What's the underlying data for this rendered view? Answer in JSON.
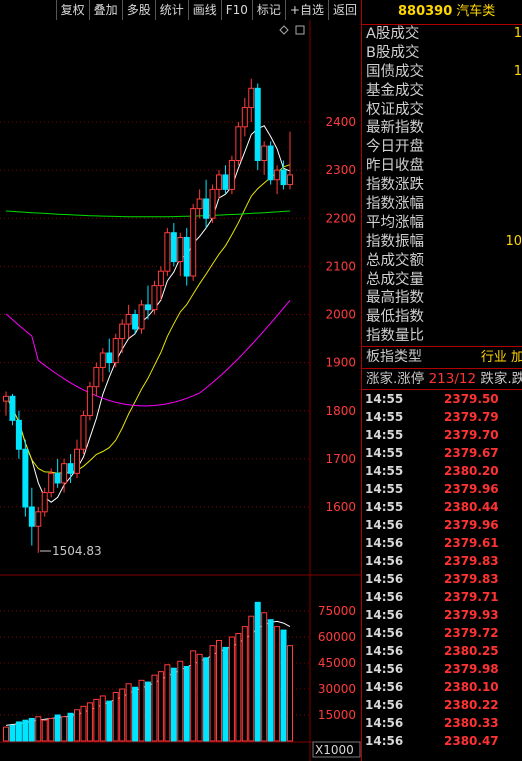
{
  "toolbar": {
    "buttons": [
      "复权",
      "叠加",
      "多股",
      "统计",
      "画线",
      "F10",
      "标记",
      "+自选",
      "返回"
    ]
  },
  "panel": {
    "code": "880390",
    "name": "汽车类",
    "stats": [
      {
        "label": "A股成交",
        "value": "1"
      },
      {
        "label": "B股成交",
        "value": ""
      },
      {
        "label": "国债成交",
        "value": "1"
      },
      {
        "label": "基金成交",
        "value": ""
      },
      {
        "label": "权证成交",
        "value": ""
      },
      {
        "label": "最新指数",
        "value": ""
      },
      {
        "label": "今日开盘",
        "value": ""
      },
      {
        "label": "昨日收盘",
        "value": ""
      },
      {
        "label": "指数涨跌",
        "value": ""
      },
      {
        "label": "指数涨幅",
        "value": ""
      },
      {
        "label": "平均涨幅",
        "value": ""
      },
      {
        "label": "指数振幅",
        "value": "10"
      },
      {
        "label": "总成交额",
        "value": ""
      },
      {
        "label": "总成交量",
        "value": ""
      },
      {
        "label": "最高指数",
        "value": ""
      },
      {
        "label": "最低指数",
        "value": ""
      },
      {
        "label": "指数量比",
        "value": ""
      }
    ],
    "board_label": "板指类型",
    "board_value": "行业 加",
    "limit_label": "涨家.涨停",
    "limit_value": "213/12",
    "limit_tail": "跌家.跌",
    "ticks": [
      {
        "time": "14:55",
        "price": "2379.50"
      },
      {
        "time": "14:55",
        "price": "2379.79"
      },
      {
        "time": "14:55",
        "price": "2379.70"
      },
      {
        "time": "14:55",
        "price": "2379.67"
      },
      {
        "time": "14:55",
        "price": "2380.20"
      },
      {
        "time": "14:55",
        "price": "2379.96"
      },
      {
        "time": "14:55",
        "price": "2380.44"
      },
      {
        "time": "14:56",
        "price": "2379.96"
      },
      {
        "time": "14:56",
        "price": "2379.61"
      },
      {
        "time": "14:56",
        "price": "2379.83"
      },
      {
        "time": "14:56",
        "price": "2379.83"
      },
      {
        "time": "14:56",
        "price": "2379.71"
      },
      {
        "time": "14:56",
        "price": "2379.93"
      },
      {
        "time": "14:56",
        "price": "2379.72"
      },
      {
        "time": "14:56",
        "price": "2380.25"
      },
      {
        "time": "14:56",
        "price": "2379.98"
      },
      {
        "time": "14:56",
        "price": "2380.10"
      },
      {
        "time": "14:56",
        "price": "2380.22"
      },
      {
        "time": "14:56",
        "price": "2380.33"
      },
      {
        "time": "14:56",
        "price": "2380.47"
      }
    ]
  },
  "kline": {
    "price_ticks": [
      2400,
      2300,
      2200,
      2100,
      2000,
      1900,
      1800,
      1700,
      1600
    ],
    "volume_ticks": [
      75000,
      60000,
      45000,
      30000,
      15000
    ],
    "volume_unit": "X1000",
    "low_label": "1504.83",
    "colors": {
      "up": "#ff3c3c",
      "down": "#00e5ff",
      "ma1": "#ffffff",
      "ma2": "#e6e600",
      "ma3": "#ff00ff",
      "ma4": "#00dd00",
      "grid": "#800000"
    }
  },
  "chart_data": {
    "type": "candlestick",
    "price_axis": {
      "min": 1504.83,
      "ticks": [
        1600,
        1700,
        1800,
        1900,
        2000,
        2100,
        2200,
        2300,
        2400
      ]
    },
    "volume_axis": {
      "unit": "X1000",
      "ticks": [
        15000,
        30000,
        45000,
        60000,
        75000
      ]
    },
    "candles": [
      [
        1820,
        1840,
        1790,
        1830
      ],
      [
        1830,
        1835,
        1770,
        1780
      ],
      [
        1780,
        1800,
        1700,
        1720
      ],
      [
        1720,
        1740,
        1580,
        1600
      ],
      [
        1600,
        1640,
        1520,
        1560
      ],
      [
        1560,
        1600,
        1504.83,
        1590
      ],
      [
        1590,
        1640,
        1580,
        1630
      ],
      [
        1630,
        1680,
        1620,
        1670
      ],
      [
        1670,
        1700,
        1640,
        1650
      ],
      [
        1650,
        1700,
        1630,
        1690
      ],
      [
        1690,
        1710,
        1650,
        1670
      ],
      [
        1670,
        1740,
        1660,
        1720
      ],
      [
        1720,
        1800,
        1710,
        1790
      ],
      [
        1790,
        1860,
        1780,
        1850
      ],
      [
        1850,
        1900,
        1830,
        1890
      ],
      [
        1890,
        1930,
        1860,
        1920
      ],
      [
        1920,
        1950,
        1880,
        1900
      ],
      [
        1900,
        1960,
        1890,
        1950
      ],
      [
        1950,
        1990,
        1920,
        1980
      ],
      [
        1980,
        2020,
        1950,
        2000
      ],
      [
        2000,
        2010,
        1960,
        1970
      ],
      [
        1970,
        2030,
        1960,
        2020
      ],
      [
        2020,
        2060,
        1990,
        2010
      ],
      [
        2010,
        2070,
        2000,
        2060
      ],
      [
        2060,
        2100,
        2030,
        2090
      ],
      [
        2090,
        2180,
        2080,
        2170
      ],
      [
        2170,
        2190,
        2100,
        2110
      ],
      [
        2110,
        2170,
        2080,
        2160
      ],
      [
        2160,
        2180,
        2060,
        2080
      ],
      [
        2080,
        2230,
        2070,
        2220
      ],
      [
        2220,
        2260,
        2200,
        2240
      ],
      [
        2240,
        2280,
        2180,
        2200
      ],
      [
        2200,
        2270,
        2190,
        2260
      ],
      [
        2260,
        2300,
        2240,
        2290
      ],
      [
        2290,
        2310,
        2250,
        2260
      ],
      [
        2260,
        2330,
        2250,
        2320
      ],
      [
        2320,
        2400,
        2310,
        2390
      ],
      [
        2390,
        2450,
        2370,
        2430
      ],
      [
        2430,
        2490,
        2400,
        2470
      ],
      [
        2470,
        2480,
        2300,
        2320
      ],
      [
        2320,
        2360,
        2290,
        2350
      ],
      [
        2350,
        2360,
        2270,
        2280
      ],
      [
        2280,
        2310,
        2250,
        2300
      ],
      [
        2300,
        2320,
        2260,
        2270
      ],
      [
        2270,
        2380,
        2260,
        2290
      ]
    ],
    "volumes": [
      8000,
      9000,
      11000,
      12000,
      13000,
      14000,
      12000,
      13000,
      15000,
      14000,
      16000,
      18000,
      20000,
      22000,
      24000,
      26000,
      23000,
      28000,
      30000,
      33000,
      31000,
      35000,
      34000,
      38000,
      40000,
      44000,
      42000,
      46000,
      43000,
      52000,
      50000,
      48000,
      55000,
      58000,
      54000,
      60000,
      62000,
      66000,
      72000,
      80000,
      74000,
      70000,
      66000,
      64000,
      55000
    ],
    "ma_volume": [
      9000,
      9500,
      10000,
      10500,
      11500,
      12000,
      12500,
      13000,
      13500,
      14000,
      14500,
      15500,
      16500,
      18000,
      19500,
      21000,
      22500,
      24000,
      25500,
      27500,
      29000,
      30500,
      32000,
      33500,
      35500,
      37500,
      39000,
      41000,
      42500,
      44500,
      46000,
      47500,
      49500,
      51500,
      53000,
      54500,
      56500,
      59000,
      61500,
      65000,
      67000,
      68500,
      69000,
      68000,
      66000
    ]
  }
}
